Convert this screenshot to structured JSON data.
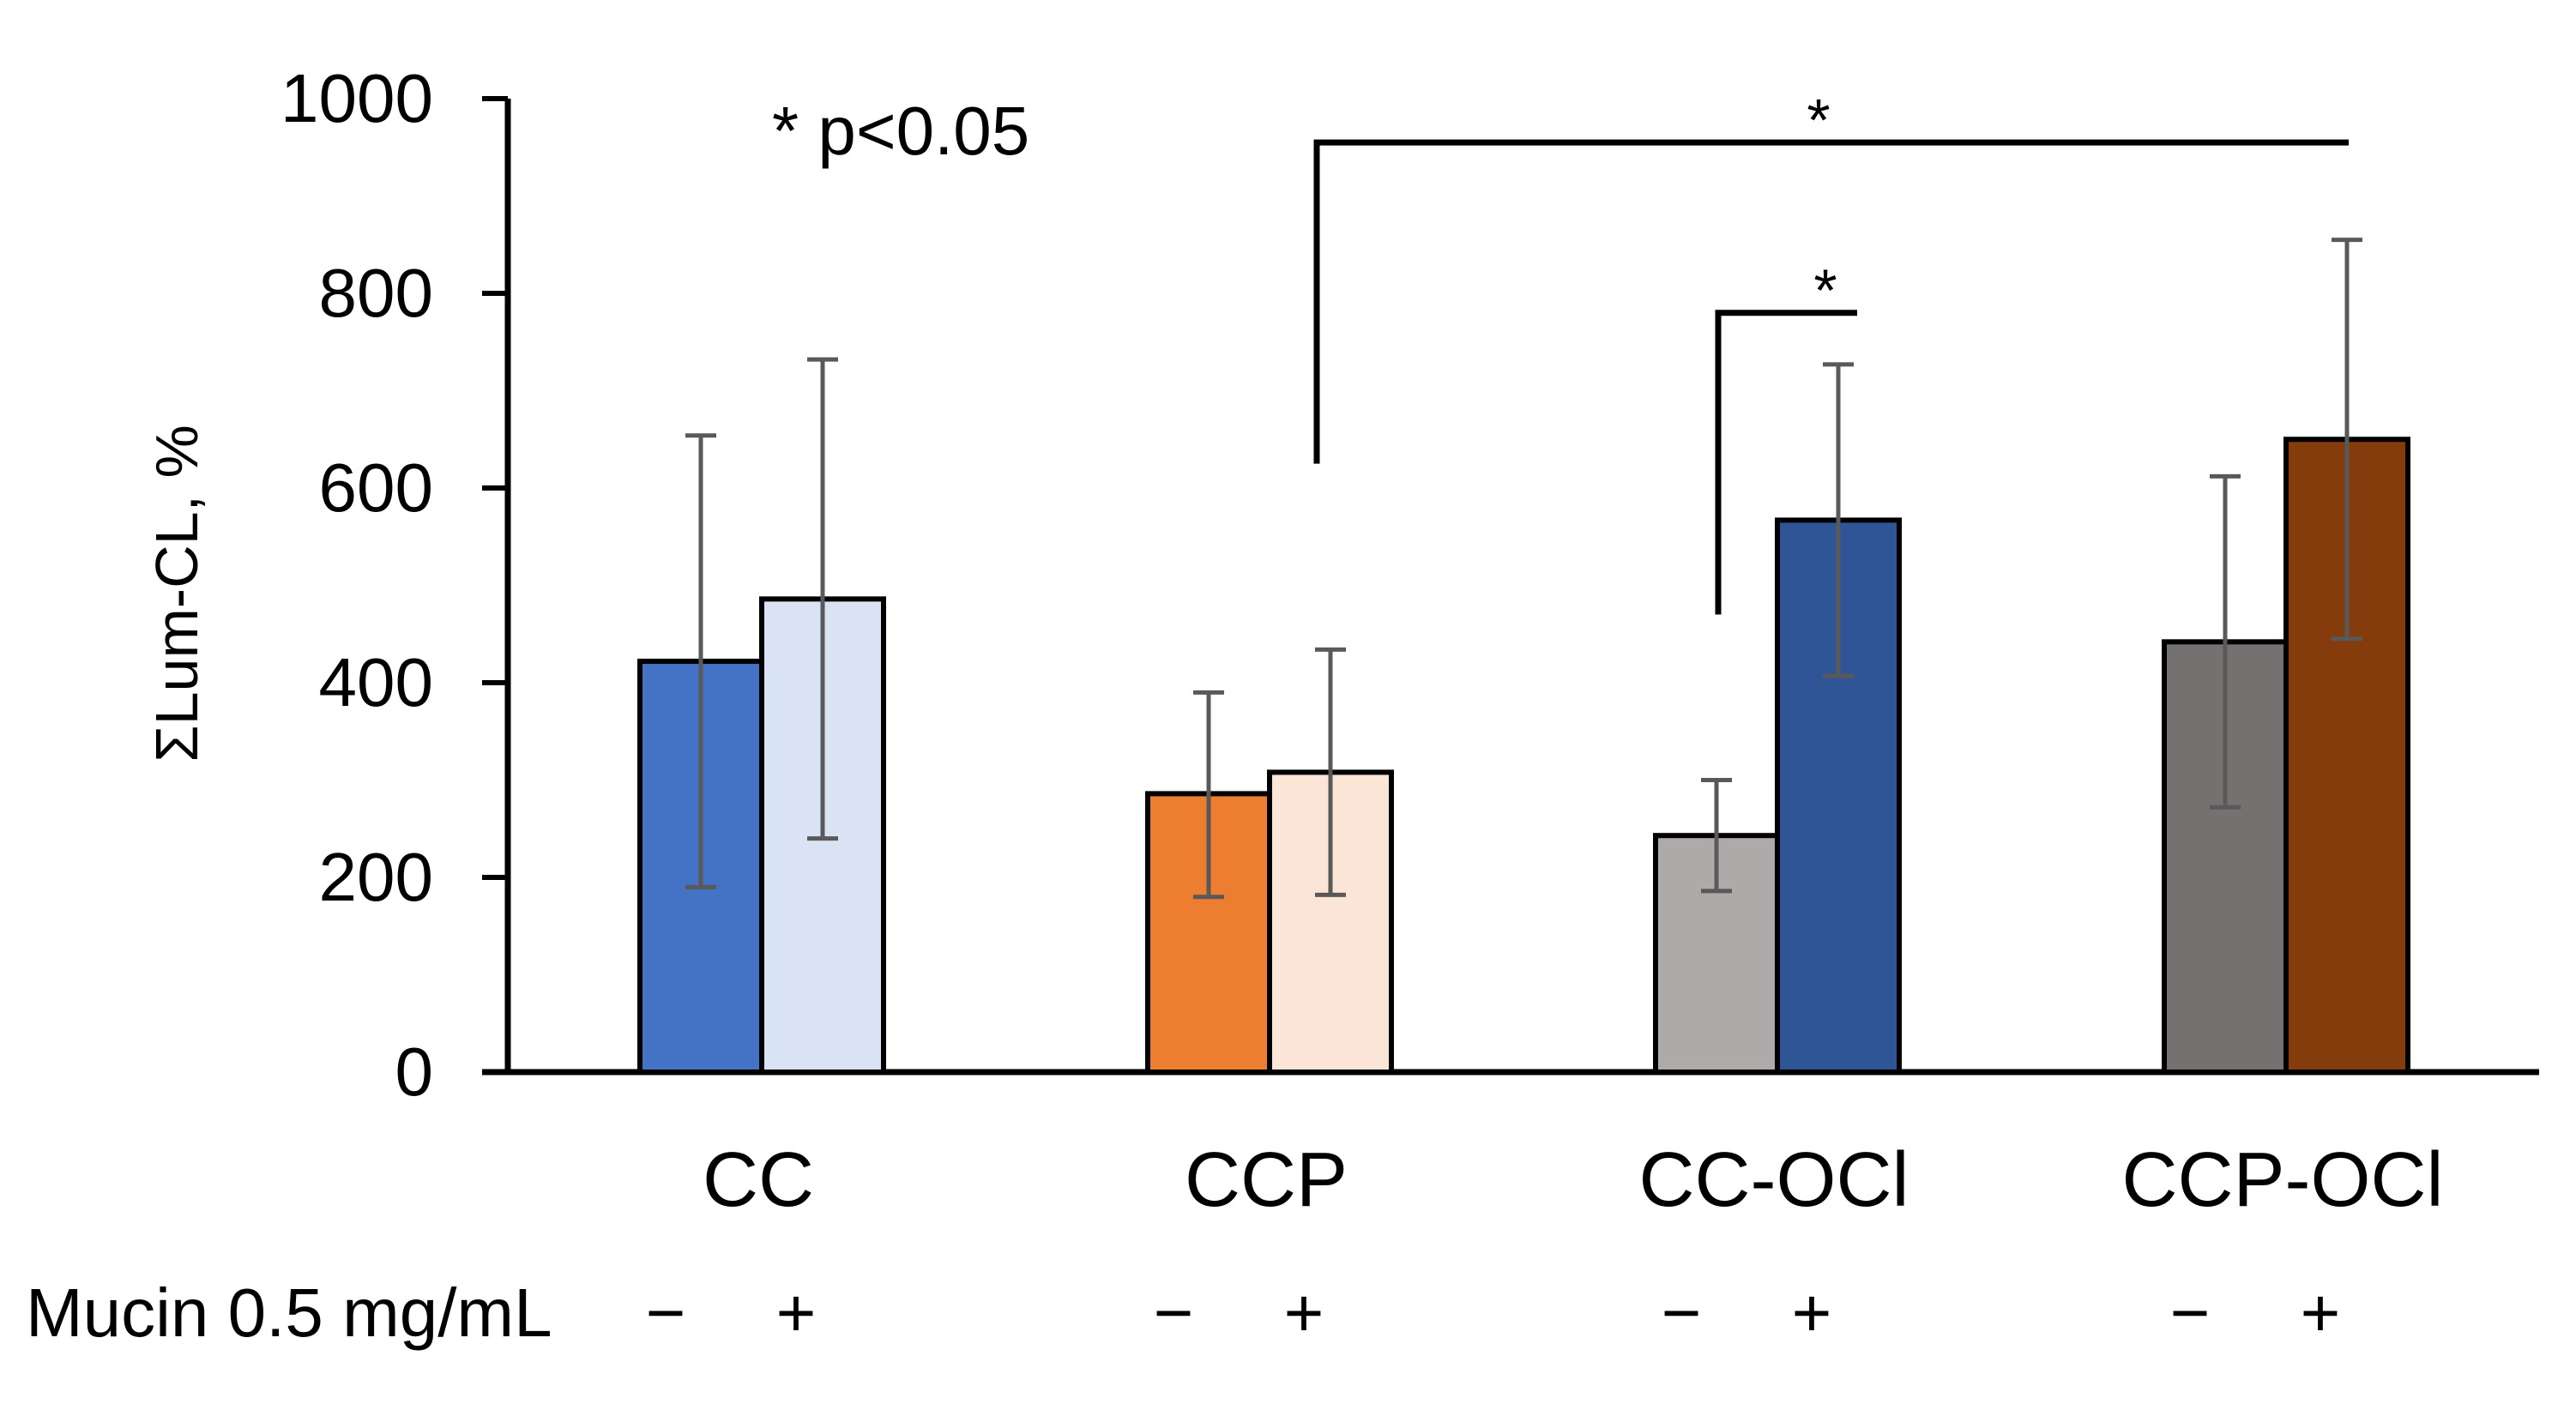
{
  "chart_data": {
    "type": "bar",
    "ylabel": "ΣLum-CL, %",
    "ylim": [
      0,
      1000
    ],
    "yticks": [
      0,
      200,
      400,
      600,
      800,
      1000
    ],
    "grid": false,
    "annotation": "* p<0.05",
    "row_label": "Mucin 0.5 mg/mL",
    "groups": [
      {
        "label": "CC",
        "bars": [
          {
            "sign": "−",
            "value": 422,
            "err_low": 190,
            "err_high": 654,
            "color": "#4472C4"
          },
          {
            "sign": "+",
            "value": 486,
            "err_low": 240,
            "err_high": 732,
            "color": "#DAE3F3"
          }
        ]
      },
      {
        "label": "CCP",
        "bars": [
          {
            "sign": "−",
            "value": 286,
            "err_low": 180,
            "err_high": 390,
            "color": "#ED7D31"
          },
          {
            "sign": "+",
            "value": 308,
            "err_low": 182,
            "err_high": 434,
            "color": "#FBE5D6"
          }
        ]
      },
      {
        "label": "CC-OCl",
        "bars": [
          {
            "sign": "−",
            "value": 243,
            "err_low": 186,
            "err_high": 300,
            "color": "#AEAAAA"
          },
          {
            "sign": "+",
            "value": 567,
            "err_low": 407,
            "err_high": 727,
            "color": "#2F5597"
          }
        ]
      },
      {
        "label": "CCP-OCl",
        "bars": [
          {
            "sign": "−",
            "value": 442,
            "err_low": 272,
            "err_high": 612,
            "color": "#767171"
          },
          {
            "sign": "+",
            "value": 650,
            "err_low": 445,
            "err_high": 855,
            "color": "#843C0C"
          }
        ]
      }
    ],
    "significance": [
      {
        "from_group": 1,
        "to_group": 3,
        "label": "*"
      },
      {
        "group": 2,
        "from_bar": 0,
        "to_bar": 1,
        "label": "*"
      }
    ]
  }
}
